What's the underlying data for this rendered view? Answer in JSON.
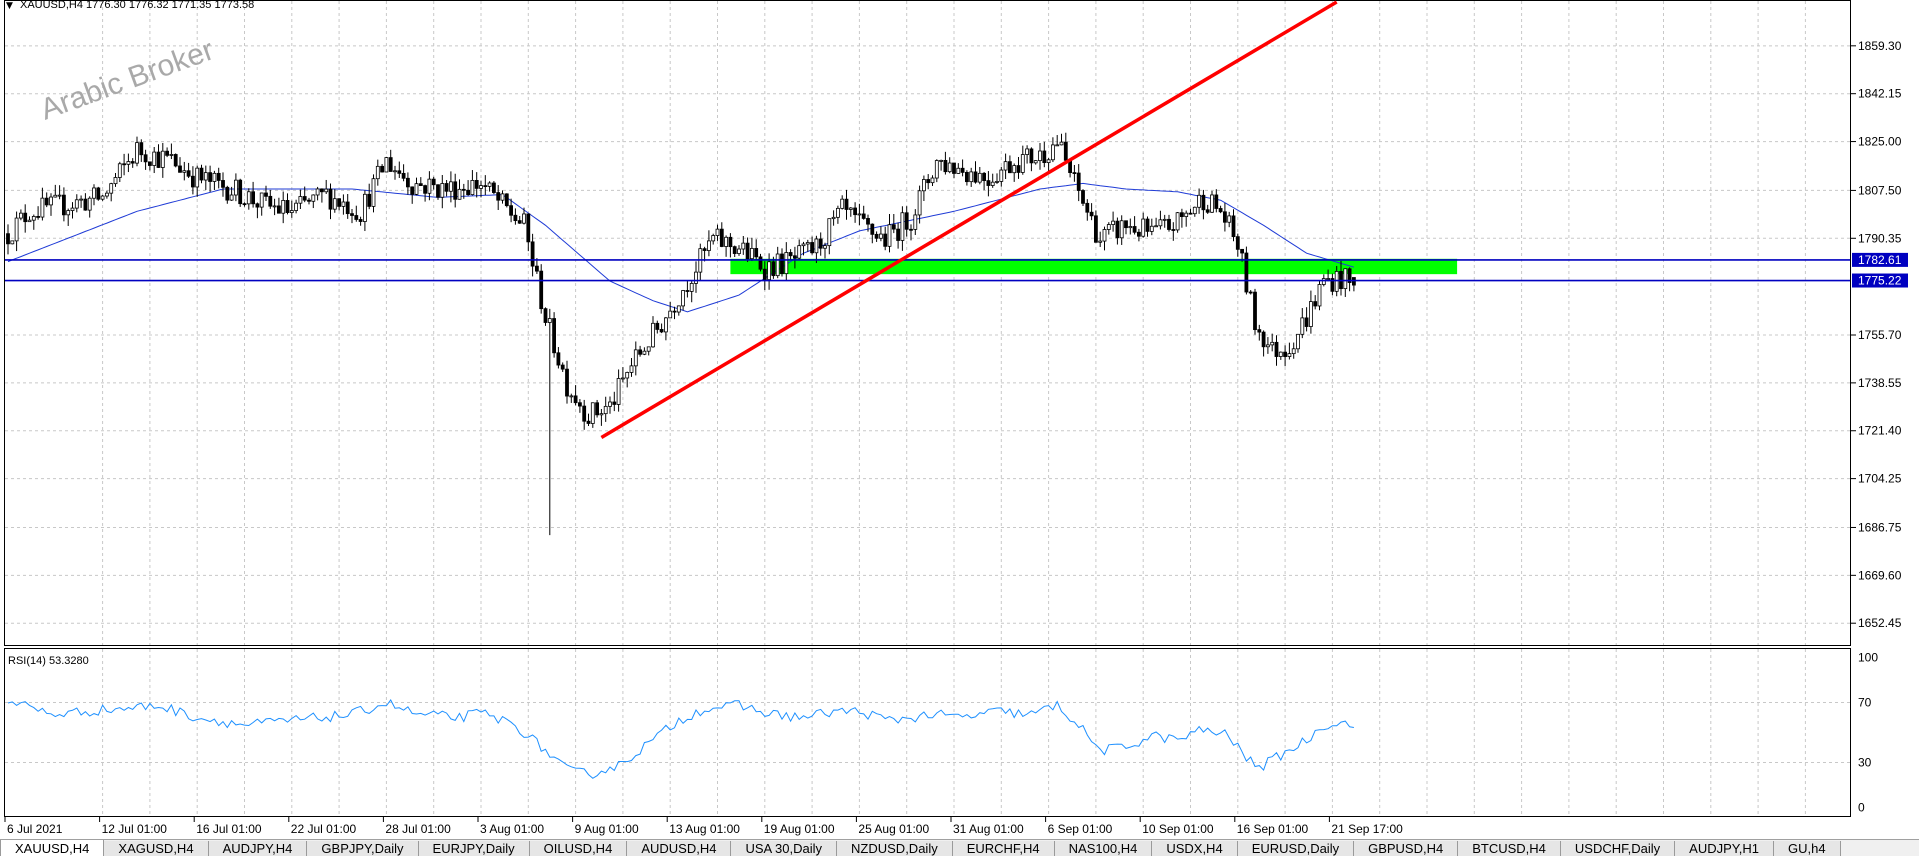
{
  "header": {
    "arrow_glyph": "▼",
    "title": "XAUUSD,H4  1776.30 1776.32 1771.35 1773.58"
  },
  "watermark": "Arabic Broker",
  "price_axis": {
    "ticks": [
      "1859.30",
      "1842.15",
      "1825.00",
      "1807.50",
      "1790.35",
      "1755.70",
      "1738.55",
      "1721.40",
      "1704.25",
      "1686.75",
      "1669.60",
      "1652.45"
    ],
    "tick_values": [
      1859.3,
      1842.15,
      1825.0,
      1807.5,
      1790.35,
      1755.7,
      1738.55,
      1721.4,
      1704.25,
      1686.75,
      1669.6,
      1652.45
    ],
    "min": 1645,
    "max": 1875,
    "labels": [
      {
        "text": "1782.61",
        "value": 1782.61,
        "color": "#0000c0"
      },
      {
        "text": "1775.22",
        "value": 1775.22,
        "color": "#0000c0"
      }
    ]
  },
  "rsi": {
    "label": "RSI(14) 53.3280",
    "levels": [
      "100",
      "70",
      "30",
      "0"
    ],
    "level_values": [
      100,
      70,
      30,
      0
    ],
    "color": "#1e90ff"
  },
  "time_axis": {
    "labels": [
      "6 Jul 2021",
      "12 Jul 01:00",
      "16 Jul 01:00",
      "22 Jul 01:00",
      "28 Jul 01:00",
      "3 Aug 01:00",
      "9 Aug 01:00",
      "13 Aug 01:00",
      "19 Aug 01:00",
      "25 Aug 01:00",
      "31 Aug 01:00",
      "6 Sep 01:00",
      "10 Sep 01:00",
      "16 Sep 01:00",
      "21 Sep 17:00"
    ],
    "bar_index": [
      0,
      22,
      44,
      66,
      88,
      110,
      132,
      154,
      176,
      198,
      220,
      242,
      264,
      286,
      308
    ]
  },
  "chart_data": {
    "type": "candlestick",
    "symbol": "XAUUSD",
    "timeframe": "H4",
    "last_ohlc": {
      "open": 1776.3,
      "high": 1776.32,
      "low": 1771.35,
      "close": 1773.58
    },
    "close_anchors": [
      [
        0,
        1792
      ],
      [
        5,
        1800
      ],
      [
        12,
        1802
      ],
      [
        22,
        1805
      ],
      [
        30,
        1822
      ],
      [
        38,
        1818
      ],
      [
        44,
        1812
      ],
      [
        52,
        1808
      ],
      [
        60,
        1802
      ],
      [
        66,
        1800
      ],
      [
        74,
        1806
      ],
      [
        82,
        1800
      ],
      [
        88,
        1818
      ],
      [
        94,
        1810
      ],
      [
        102,
        1808
      ],
      [
        110,
        1810
      ],
      [
        115,
        1802
      ],
      [
        120,
        1795
      ],
      [
        125,
        1762
      ],
      [
        130,
        1738
      ],
      [
        135,
        1727
      ],
      [
        140,
        1730
      ],
      [
        145,
        1745
      ],
      [
        152,
        1760
      ],
      [
        158,
        1775
      ],
      [
        164,
        1790
      ],
      [
        170,
        1787
      ],
      [
        176,
        1780
      ],
      [
        182,
        1782
      ],
      [
        188,
        1787
      ],
      [
        194,
        1800
      ],
      [
        198,
        1795
      ],
      [
        204,
        1790
      ],
      [
        210,
        1798
      ],
      [
        216,
        1818
      ],
      [
        222,
        1815
      ],
      [
        228,
        1812
      ],
      [
        234,
        1818
      ],
      [
        240,
        1820
      ],
      [
        244,
        1825
      ],
      [
        248,
        1810
      ],
      [
        254,
        1790
      ],
      [
        260,
        1795
      ],
      [
        266,
        1792
      ],
      [
        272,
        1796
      ],
      [
        278,
        1805
      ],
      [
        282,
        1800
      ],
      [
        286,
        1788
      ],
      [
        290,
        1760
      ],
      [
        294,
        1750
      ],
      [
        298,
        1752
      ],
      [
        302,
        1762
      ],
      [
        306,
        1775
      ],
      [
        310,
        1776
      ],
      [
        313,
        1773.58
      ]
    ],
    "ma_anchors": [
      [
        0,
        1782
      ],
      [
        30,
        1800
      ],
      [
        50,
        1808
      ],
      [
        80,
        1808
      ],
      [
        100,
        1805
      ],
      [
        115,
        1806
      ],
      [
        125,
        1795
      ],
      [
        140,
        1775
      ],
      [
        150,
        1768
      ],
      [
        158,
        1764
      ],
      [
        170,
        1770
      ],
      [
        185,
        1785
      ],
      [
        198,
        1793
      ],
      [
        220,
        1800
      ],
      [
        240,
        1808
      ],
      [
        250,
        1810
      ],
      [
        260,
        1808
      ],
      [
        272,
        1807
      ],
      [
        282,
        1804
      ],
      [
        292,
        1795
      ],
      [
        302,
        1785
      ],
      [
        313,
        1780
      ]
    ],
    "rsi_anchors": [
      [
        0,
        72
      ],
      [
        10,
        62
      ],
      [
        22,
        65
      ],
      [
        35,
        68
      ],
      [
        44,
        60
      ],
      [
        55,
        55
      ],
      [
        66,
        58
      ],
      [
        80,
        62
      ],
      [
        88,
        70
      ],
      [
        95,
        62
      ],
      [
        105,
        60
      ],
      [
        110,
        63
      ],
      [
        118,
        55
      ],
      [
        125,
        38
      ],
      [
        130,
        25
      ],
      [
        135,
        22
      ],
      [
        142,
        28
      ],
      [
        150,
        45
      ],
      [
        156,
        58
      ],
      [
        162,
        66
      ],
      [
        170,
        68
      ],
      [
        178,
        62
      ],
      [
        185,
        60
      ],
      [
        192,
        64
      ],
      [
        198,
        64
      ],
      [
        205,
        58
      ],
      [
        215,
        62
      ],
      [
        222,
        60
      ],
      [
        230,
        64
      ],
      [
        238,
        62
      ],
      [
        244,
        68
      ],
      [
        248,
        58
      ],
      [
        254,
        38
      ],
      [
        260,
        40
      ],
      [
        266,
        48
      ],
      [
        272,
        45
      ],
      [
        278,
        52
      ],
      [
        284,
        48
      ],
      [
        288,
        32
      ],
      [
        292,
        28
      ],
      [
        296,
        35
      ],
      [
        302,
        45
      ],
      [
        306,
        55
      ],
      [
        310,
        57
      ],
      [
        313,
        53.33
      ]
    ],
    "annotations": {
      "trendline": {
        "from": [
          138,
          1719
        ],
        "to": [
          309,
          1875
        ],
        "color": "#ff0000"
      },
      "zone": {
        "from_bar": 168,
        "to_bar": 337,
        "low": 1777.5,
        "high": 1783.0,
        "color": "#00ff00"
      },
      "hlines": [
        {
          "value": 1782.61,
          "color": "#0000c0"
        },
        {
          "value": 1775.22,
          "color": "#0000c0"
        }
      ]
    },
    "colors": {
      "candle": "#000000",
      "ma": "#1f3bd6",
      "rsi": "#1e90ff"
    }
  },
  "tabs": {
    "active_index": 0,
    "items": [
      "XAUUSD,H4",
      "XAGUSD,H4",
      "AUDJPY,H4",
      "GBPJPY,Daily",
      "EURJPY,Daily",
      "OILUSD,H4",
      "AUDUSD,H4",
      "USA 30,Daily",
      "NZDUSD,Daily",
      "EURCHF,H4",
      "NAS100,H4",
      "USDX,H4",
      "EURUSD,Daily",
      "GBPUSD,H4",
      "BTCUSD,H4",
      "USDCHF,Daily",
      "AUDJPY,H1",
      "GU,h4"
    ]
  }
}
